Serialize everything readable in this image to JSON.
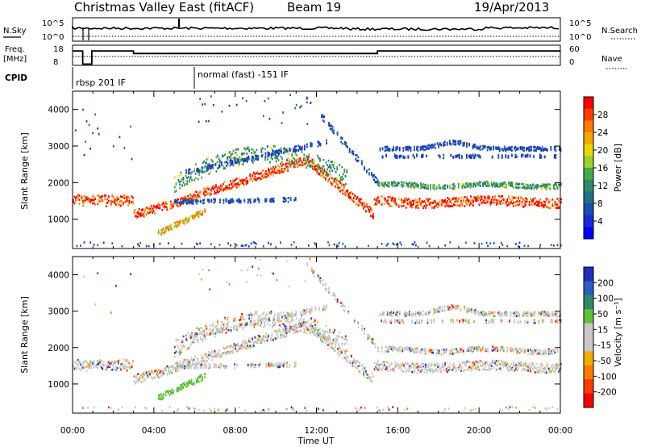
{
  "header": {
    "title": "Christmas Valley East (fitACF)",
    "beam": "Beam 19",
    "date": "19/Apr/2013"
  },
  "status_panels": {
    "nsky_label": "N.Sky",
    "nsearch_label": "N.Search",
    "noise_ticks": [
      "10^5",
      "10^0"
    ],
    "freq_label_1": "Freq.",
    "freq_label_2": "[MHz]",
    "freq_ticks": [
      "18",
      "8"
    ],
    "nave_label": "Nave",
    "nave_ticks": [
      "60",
      "0"
    ],
    "cpid_label": "CPID",
    "cpid_segments": [
      {
        "label": "rbsp 201 IF",
        "start_hour": 0.0,
        "end_hour": 6.1
      },
      {
        "label": "normal (fast) -151 IF",
        "start_hour": 6.1,
        "end_hour": 24.0
      }
    ],
    "freq_series_mhz": [
      [
        0,
        16
      ],
      [
        0.5,
        16
      ],
      [
        0.5,
        8.3
      ],
      [
        0.95,
        8.3
      ],
      [
        0.95,
        16
      ],
      [
        3.0,
        16
      ],
      [
        3.0,
        14.5
      ],
      [
        15.0,
        14.5
      ],
      [
        15.0,
        16
      ],
      [
        24,
        16
      ]
    ]
  },
  "chart_data": [
    {
      "type": "heatmap",
      "title": "",
      "quantity": "Power",
      "ylabel": "Slant Range [km]",
      "xlabel": "",
      "xlim_hours": [
        0,
        24
      ],
      "ylim": [
        200,
        4500
      ],
      "yticks": [
        1000,
        2000,
        3000,
        4000
      ],
      "colorbar": {
        "label": "Power [dB]",
        "ticks": [
          "28",
          "24",
          "20",
          "16",
          "12",
          "8",
          "4"
        ],
        "colors": [
          "#ff0000",
          "#ff3a00",
          "#ff7a00",
          "#f4a800",
          "#e8d800",
          "#9ed02a",
          "#3fae43",
          "#2f8a68",
          "#1f6f8a",
          "#1b4fb0",
          "#1a2bd6",
          "#0000ff"
        ]
      }
    },
    {
      "type": "heatmap",
      "title": "",
      "quantity": "Velocity",
      "ylabel": "Slant Range [km]",
      "xlabel": "Time UT",
      "xlim_hours": [
        0,
        24
      ],
      "ylim": [
        200,
        4500
      ],
      "yticks": [
        1000,
        2000,
        3000,
        4000
      ],
      "xticks": [
        "00:00",
        "04:00",
        "08:00",
        "12:00",
        "16:00",
        "20:00",
        "00:00"
      ],
      "colorbar": {
        "label": "Velocity [m s⁻¹]",
        "ticks": [
          "200",
          "100",
          "50",
          "15",
          "-15",
          "-50",
          "-100",
          "-200"
        ],
        "colors": [
          "#1f2fb8",
          "#2a5fc6",
          "#2f8a68",
          "#5fc23a",
          "#c8c8c8",
          "#c8c8c8",
          "#f0b000",
          "#ff7a00",
          "#ff3a00",
          "#ff0000"
        ]
      }
    }
  ]
}
